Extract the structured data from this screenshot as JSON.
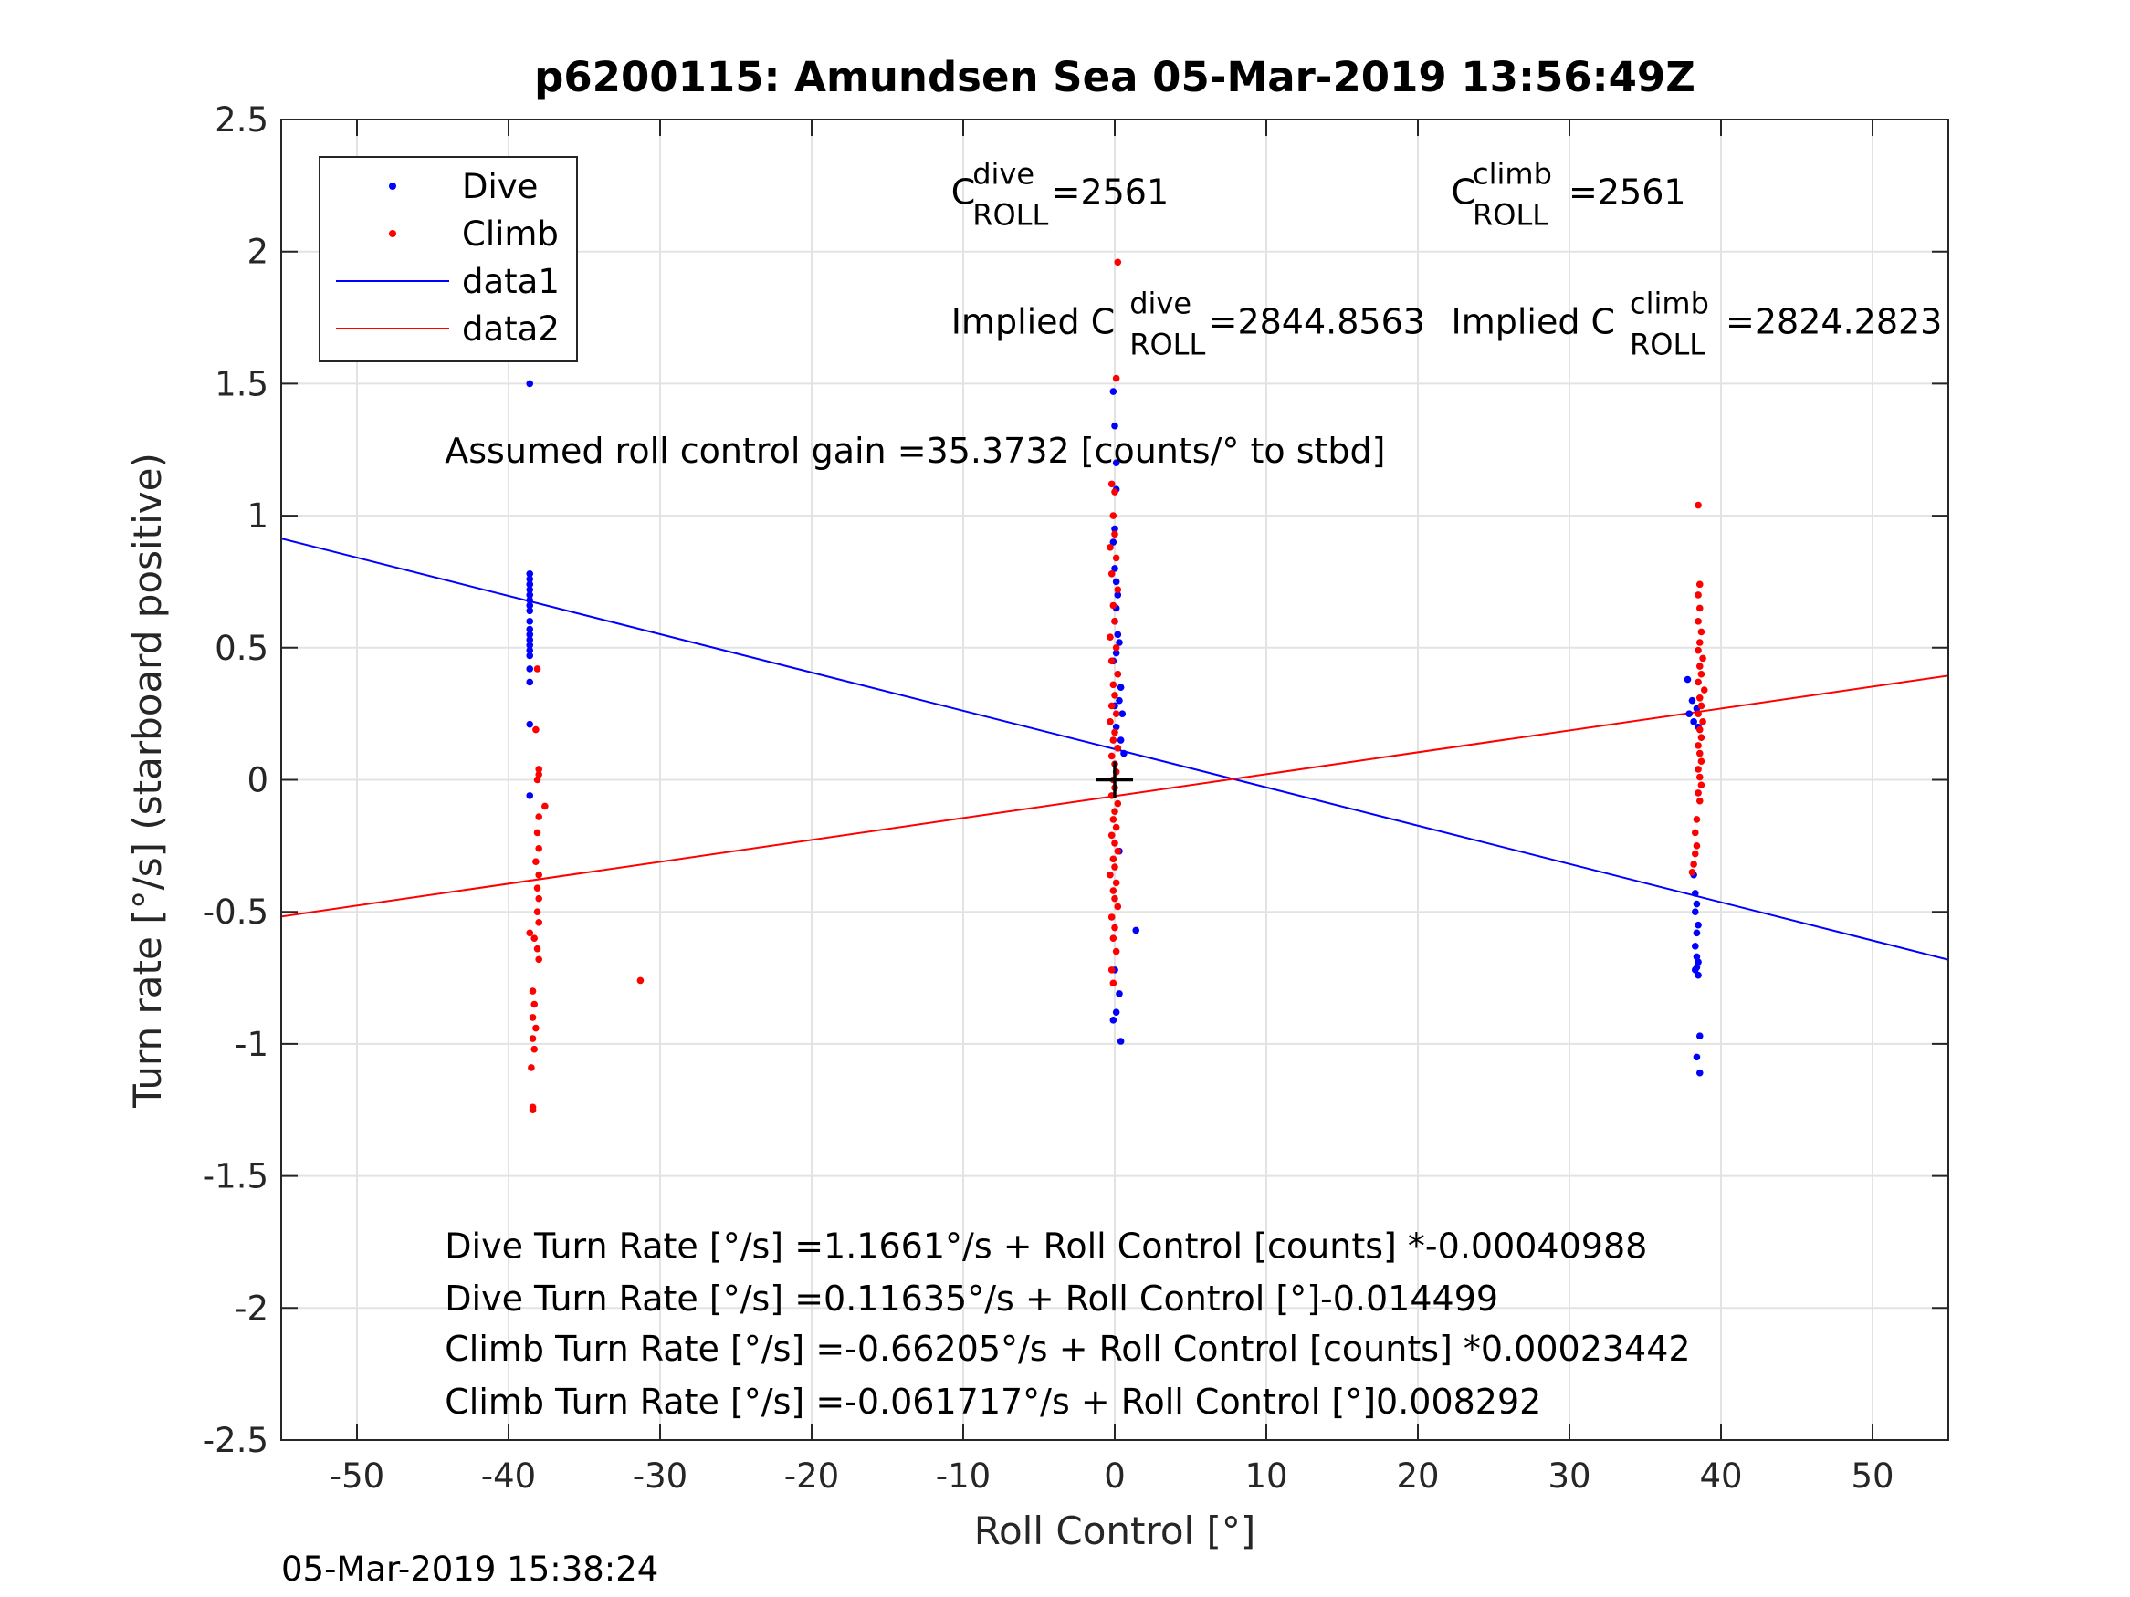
{
  "chart_data": {
    "type": "scatter",
    "title": "p6200115: Amundsen Sea 05-Mar-2019 13:56:49Z",
    "xlabel": "Roll Control [°]",
    "ylabel": "Turn rate [°/s] (starboard positive)",
    "xlim": [
      -55,
      55
    ],
    "ylim": [
      -2.5,
      2.5
    ],
    "xticks": [
      -50,
      -40,
      -30,
      -20,
      -10,
      0,
      10,
      20,
      30,
      40,
      50
    ],
    "xtick_labels": [
      "-50",
      "-40",
      "-30",
      "-20",
      "-10",
      "0",
      "10",
      "20",
      "30",
      "40",
      "50"
    ],
    "yticks": [
      -2.5,
      -2,
      -1.5,
      -1,
      -0.5,
      0,
      0.5,
      1,
      1.5,
      2,
      2.5
    ],
    "ytick_labels": [
      "-2.5",
      "-2",
      "-1.5",
      "-1",
      "-0.5",
      "0",
      "0.5",
      "1",
      "1.5",
      "2",
      "2.5"
    ],
    "grid": true,
    "legend": {
      "position": "top-left",
      "entries": [
        {
          "label": "Dive",
          "kind": "marker",
          "color": "#0000ff"
        },
        {
          "label": "Climb",
          "kind": "marker",
          "color": "#ff0000"
        },
        {
          "label": "data1",
          "kind": "line",
          "color": "#0000ff"
        },
        {
          "label": "data2",
          "kind": "line",
          "color": "#ff0000"
        }
      ]
    },
    "series": [
      {
        "name": "Dive",
        "kind": "points",
        "color": "#0000ff",
        "points": [
          [
            -38.6,
            1.77
          ],
          [
            -38.6,
            1.5
          ],
          [
            -38.6,
            0.78
          ],
          [
            -38.6,
            0.76
          ],
          [
            -38.6,
            0.74
          ],
          [
            -38.6,
            0.72
          ],
          [
            -38.6,
            0.7
          ],
          [
            -38.6,
            0.68
          ],
          [
            -38.6,
            0.66
          ],
          [
            -38.6,
            0.64
          ],
          [
            -38.6,
            0.6
          ],
          [
            -38.6,
            0.57
          ],
          [
            -38.6,
            0.55
          ],
          [
            -38.6,
            0.53
          ],
          [
            -38.6,
            0.51
          ],
          [
            -38.6,
            0.49
          ],
          [
            -38.6,
            0.47
          ],
          [
            -38.6,
            0.42
          ],
          [
            -38.6,
            0.37
          ],
          [
            -38.6,
            0.21
          ],
          [
            -38.6,
            -0.06
          ],
          [
            -0.1,
            1.47
          ],
          [
            0.0,
            1.34
          ],
          [
            0.1,
            1.2
          ],
          [
            0.1,
            1.1
          ],
          [
            0.0,
            0.95
          ],
          [
            -0.1,
            0.9
          ],
          [
            0.0,
            0.8
          ],
          [
            0.1,
            0.75
          ],
          [
            0.2,
            0.7
          ],
          [
            0.1,
            0.65
          ],
          [
            0.0,
            0.6
          ],
          [
            0.2,
            0.55
          ],
          [
            0.3,
            0.52
          ],
          [
            0.1,
            0.48
          ],
          [
            -0.1,
            0.45
          ],
          [
            0.2,
            0.4
          ],
          [
            0.4,
            0.35
          ],
          [
            0.3,
            0.3
          ],
          [
            0.0,
            0.28
          ],
          [
            0.5,
            0.25
          ],
          [
            0.1,
            0.2
          ],
          [
            0.4,
            0.15
          ],
          [
            0.2,
            0.12
          ],
          [
            0.6,
            0.1
          ],
          [
            0.3,
            -0.27
          ],
          [
            1.4,
            -0.57
          ],
          [
            0.0,
            -0.72
          ],
          [
            0.3,
            -0.81
          ],
          [
            0.1,
            -0.88
          ],
          [
            -0.1,
            -0.91
          ],
          [
            0.4,
            -0.99
          ],
          [
            37.8,
            0.38
          ],
          [
            38.1,
            0.3
          ],
          [
            38.4,
            0.27
          ],
          [
            37.9,
            0.25
          ],
          [
            38.2,
            0.22
          ],
          [
            38.5,
            0.2
          ],
          [
            38.2,
            -0.36
          ],
          [
            38.3,
            -0.43
          ],
          [
            38.4,
            -0.47
          ],
          [
            38.3,
            -0.5
          ],
          [
            38.5,
            -0.55
          ],
          [
            38.4,
            -0.58
          ],
          [
            38.3,
            -0.63
          ],
          [
            38.4,
            -0.67
          ],
          [
            38.5,
            -0.69
          ],
          [
            38.4,
            -0.71
          ],
          [
            38.3,
            -0.72
          ],
          [
            38.5,
            -0.74
          ],
          [
            38.6,
            -0.97
          ],
          [
            38.4,
            -1.05
          ],
          [
            38.6,
            -1.11
          ]
        ]
      },
      {
        "name": "Climb",
        "kind": "points",
        "color": "#ff0000",
        "points": [
          [
            -38.1,
            0.42
          ],
          [
            -38.2,
            0.19
          ],
          [
            -38.0,
            0.04
          ],
          [
            -38.0,
            0.02
          ],
          [
            -38.1,
            0.0
          ],
          [
            -37.6,
            -0.1
          ],
          [
            -38.0,
            -0.14
          ],
          [
            -38.1,
            -0.2
          ],
          [
            -38.0,
            -0.26
          ],
          [
            -38.2,
            -0.31
          ],
          [
            -38.0,
            -0.36
          ],
          [
            -38.1,
            -0.41
          ],
          [
            -38.0,
            -0.45
          ],
          [
            -38.1,
            -0.5
          ],
          [
            -38.0,
            -0.54
          ],
          [
            -38.6,
            -0.58
          ],
          [
            -38.3,
            -0.6
          ],
          [
            -38.1,
            -0.64
          ],
          [
            -38.0,
            -0.68
          ],
          [
            -38.4,
            -0.8
          ],
          [
            -38.3,
            -0.85
          ],
          [
            -38.4,
            -0.9
          ],
          [
            -38.2,
            -0.94
          ],
          [
            -38.4,
            -0.98
          ],
          [
            -38.3,
            -1.02
          ],
          [
            -38.5,
            -1.09
          ],
          [
            -38.4,
            -1.24
          ],
          [
            -38.4,
            -1.25
          ],
          [
            -31.3,
            -0.76
          ],
          [
            0.2,
            1.96
          ],
          [
            0.1,
            1.52
          ],
          [
            -0.2,
            1.12
          ],
          [
            0.0,
            1.09
          ],
          [
            -0.1,
            1.0
          ],
          [
            0.0,
            0.93
          ],
          [
            -0.3,
            0.88
          ],
          [
            0.1,
            0.84
          ],
          [
            -0.2,
            0.78
          ],
          [
            0.2,
            0.72
          ],
          [
            -0.1,
            0.66
          ],
          [
            0.0,
            0.6
          ],
          [
            -0.3,
            0.54
          ],
          [
            0.1,
            0.5
          ],
          [
            -0.2,
            0.45
          ],
          [
            0.2,
            0.4
          ],
          [
            -0.1,
            0.36
          ],
          [
            0.0,
            0.32
          ],
          [
            -0.2,
            0.28
          ],
          [
            0.1,
            0.25
          ],
          [
            -0.3,
            0.22
          ],
          [
            0.0,
            0.18
          ],
          [
            -0.1,
            0.15
          ],
          [
            0.2,
            0.12
          ],
          [
            -0.2,
            0.09
          ],
          [
            0.0,
            0.06
          ],
          [
            0.1,
            0.03
          ],
          [
            -0.1,
            0.0
          ],
          [
            0.0,
            -0.03
          ],
          [
            -0.2,
            -0.06
          ],
          [
            0.2,
            -0.09
          ],
          [
            0.0,
            -0.12
          ],
          [
            -0.1,
            -0.15
          ],
          [
            0.1,
            -0.18
          ],
          [
            -0.2,
            -0.21
          ],
          [
            0.0,
            -0.24
          ],
          [
            0.2,
            -0.27
          ],
          [
            -0.1,
            -0.3
          ],
          [
            0.0,
            -0.33
          ],
          [
            -0.3,
            -0.36
          ],
          [
            0.1,
            -0.39
          ],
          [
            -0.1,
            -0.42
          ],
          [
            0.0,
            -0.45
          ],
          [
            0.2,
            -0.48
          ],
          [
            -0.2,
            -0.52
          ],
          [
            0.0,
            -0.56
          ],
          [
            -0.1,
            -0.6
          ],
          [
            0.1,
            -0.65
          ],
          [
            -0.2,
            -0.72
          ],
          [
            -0.1,
            -0.77
          ],
          [
            38.5,
            1.04
          ],
          [
            38.6,
            0.74
          ],
          [
            38.5,
            0.7
          ],
          [
            38.6,
            0.65
          ],
          [
            38.5,
            0.6
          ],
          [
            38.7,
            0.56
          ],
          [
            38.6,
            0.52
          ],
          [
            38.5,
            0.49
          ],
          [
            38.8,
            0.46
          ],
          [
            38.6,
            0.43
          ],
          [
            38.7,
            0.4
          ],
          [
            38.5,
            0.37
          ],
          [
            38.9,
            0.34
          ],
          [
            38.6,
            0.31
          ],
          [
            38.7,
            0.28
          ],
          [
            38.5,
            0.25
          ],
          [
            38.8,
            0.22
          ],
          [
            38.6,
            0.19
          ],
          [
            38.7,
            0.16
          ],
          [
            38.5,
            0.13
          ],
          [
            38.6,
            0.1
          ],
          [
            38.7,
            0.07
          ],
          [
            38.5,
            0.04
          ],
          [
            38.6,
            0.01
          ],
          [
            38.7,
            -0.02
          ],
          [
            38.5,
            -0.05
          ],
          [
            38.6,
            -0.08
          ],
          [
            38.4,
            -0.15
          ],
          [
            38.3,
            -0.2
          ],
          [
            38.4,
            -0.25
          ],
          [
            38.3,
            -0.28
          ],
          [
            38.2,
            -0.32
          ],
          [
            38.1,
            -0.35
          ]
        ]
      },
      {
        "name": "data1",
        "kind": "line",
        "color": "#0000ff",
        "x": [
          -55,
          55
        ],
        "y": [
          0.9138,
          -0.6811
        ]
      },
      {
        "name": "data2",
        "kind": "line",
        "color": "#ff0000",
        "x": [
          -55,
          55
        ],
        "y": [
          -0.5178,
          0.3943
        ]
      }
    ],
    "center_marker": {
      "x": 0,
      "y": 0,
      "symbol": "+",
      "color": "#000000"
    },
    "annotations": [
      {
        "name": "c-roll-dive",
        "base": "C",
        "sup": "dive",
        "sub": "ROLL",
        "value": "=2561",
        "x": -10.8,
        "y": 2.18
      },
      {
        "name": "c-roll-climb",
        "base": "C",
        "sup": "climb",
        "sub": "ROLL",
        "value": "=2561",
        "x": 22.2,
        "y": 2.18
      },
      {
        "name": "implied-c-roll-dive",
        "base": "Implied C",
        "sup": "dive",
        "sub": "ROLL",
        "value": "=2844.8563",
        "x": -10.8,
        "y": 1.69
      },
      {
        "name": "implied-c-roll-climb",
        "base": "Implied C",
        "sup": "climb",
        "sub": "ROLL",
        "value": "=2824.2823",
        "x": 22.2,
        "y": 1.69
      }
    ],
    "text_lines": [
      {
        "name": "assumed-gain-text",
        "text": "Assumed roll control gain =35.3732 [counts/° to stbd]",
        "x": -44.2,
        "y": 1.2
      },
      {
        "name": "fit-line-1",
        "text": "Dive Turn Rate [°/s] =1.1661°/s + Roll Control [counts] *-0.00040988",
        "x": -44.2,
        "y": -1.81
      },
      {
        "name": "fit-line-2",
        "text": "Dive Turn Rate [°/s] =0.11635°/s + Roll Control [°]-0.014499",
        "x": -44.2,
        "y": -2.01
      },
      {
        "name": "fit-line-3",
        "text": "Climb Turn Rate [°/s] =-0.66205°/s + Roll Control [counts] *0.00023442",
        "x": -44.2,
        "y": -2.2
      },
      {
        "name": "fit-line-4",
        "text": "Climb Turn Rate [°/s] =-0.061717°/s + Roll Control [°]0.008292",
        "x": -44.2,
        "y": -2.4
      }
    ]
  },
  "footer": {
    "timestamp": "05-Mar-2019 15:38:24"
  }
}
